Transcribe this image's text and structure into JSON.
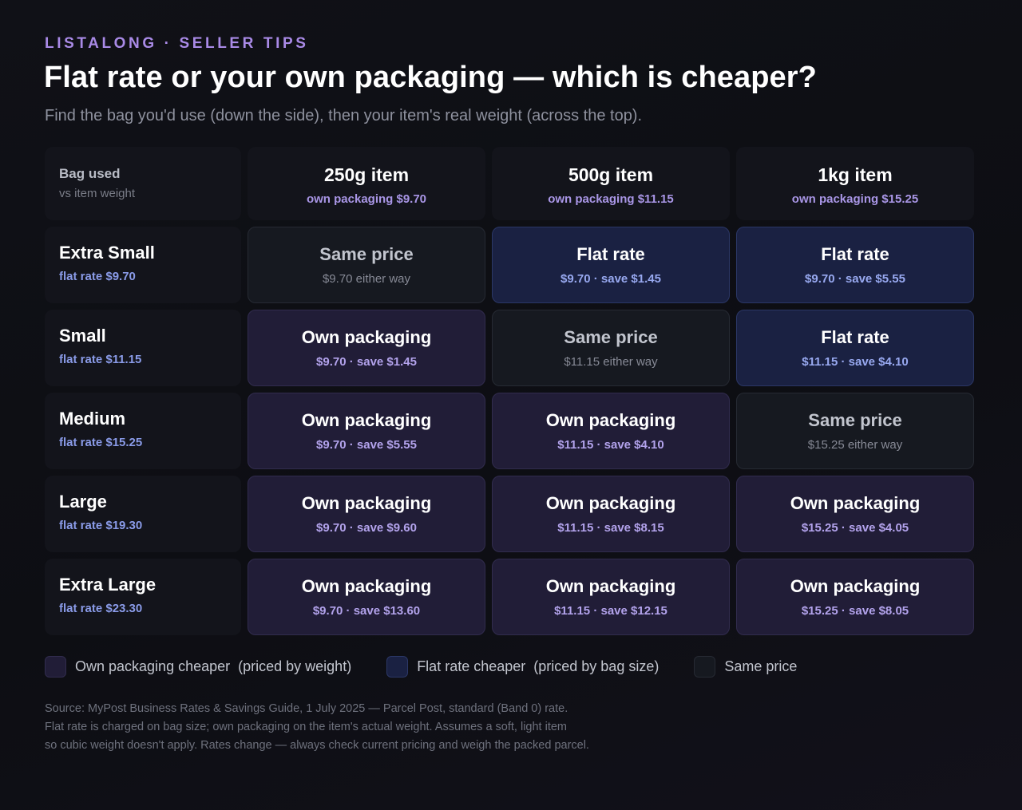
{
  "header": {
    "eyebrow": "LISTALONG · SELLER TIPS",
    "title": "Flat rate or your own packaging — which is cheaper?",
    "subtitle": "Find the bag you'd use (down the side), then your item's real weight (across the top)."
  },
  "corner": {
    "main": "Bag used",
    "sub": "vs item weight"
  },
  "columns": [
    {
      "title": "250g item",
      "sub": "own packaging  $9.70"
    },
    {
      "title": "500g item",
      "sub": "own packaging  $11.15"
    },
    {
      "title": "1kg item",
      "sub": "own packaging  $15.25"
    }
  ],
  "rows": [
    {
      "name": "Extra Small",
      "rate": "flat rate  $9.70",
      "cells": [
        {
          "type": "same",
          "title": "Same price",
          "sub": "$9.70 either way"
        },
        {
          "type": "flat",
          "title": "Flat rate",
          "sub": "$9.70  ·  save $1.45"
        },
        {
          "type": "flat",
          "title": "Flat rate",
          "sub": "$9.70  ·  save $5.55"
        }
      ]
    },
    {
      "name": "Small",
      "rate": "flat rate  $11.15",
      "cells": [
        {
          "type": "own",
          "title": "Own packaging",
          "sub": "$9.70  ·  save $1.45"
        },
        {
          "type": "same",
          "title": "Same price",
          "sub": "$11.15 either way"
        },
        {
          "type": "flat",
          "title": "Flat rate",
          "sub": "$11.15  ·  save $4.10"
        }
      ]
    },
    {
      "name": "Medium",
      "rate": "flat rate  $15.25",
      "cells": [
        {
          "type": "own",
          "title": "Own packaging",
          "sub": "$9.70  ·  save $5.55"
        },
        {
          "type": "own",
          "title": "Own packaging",
          "sub": "$11.15  ·  save $4.10"
        },
        {
          "type": "same",
          "title": "Same price",
          "sub": "$15.25 either way"
        }
      ]
    },
    {
      "name": "Large",
      "rate": "flat rate  $19.30",
      "cells": [
        {
          "type": "own",
          "title": "Own packaging",
          "sub": "$9.70  ·  save $9.60"
        },
        {
          "type": "own",
          "title": "Own packaging",
          "sub": "$11.15  ·  save $8.15"
        },
        {
          "type": "own",
          "title": "Own packaging",
          "sub": "$15.25  ·  save $4.05"
        }
      ]
    },
    {
      "name": "Extra Large",
      "rate": "flat rate  $23.30",
      "cells": [
        {
          "type": "own",
          "title": "Own packaging",
          "sub": "$9.70  ·  save $13.60"
        },
        {
          "type": "own",
          "title": "Own packaging",
          "sub": "$11.15  ·  save $12.15"
        },
        {
          "type": "own",
          "title": "Own packaging",
          "sub": "$15.25  ·  save $8.05"
        }
      ]
    }
  ],
  "legend": [
    {
      "type": "own",
      "label": "Own packaging cheaper  (priced by weight)"
    },
    {
      "type": "flat",
      "label": "Flat rate cheaper  (priced by bag size)"
    },
    {
      "type": "same",
      "label": "Same price"
    }
  ],
  "footnote": [
    "Source: MyPost Business Rates & Savings Guide, 1 July 2025 — Parcel Post, standard (Band 0) rate.",
    "Flat rate is charged on bag size; own packaging on the item's actual weight. Assumes a soft, light item",
    "so cubic weight doesn't apply. Rates change — always check current pricing and weigh the packed parcel."
  ],
  "colors": {
    "accent": "#a98ae6",
    "own_bg": "#211d37",
    "flat_bg": "#1a2142",
    "same_bg": "#161920"
  }
}
